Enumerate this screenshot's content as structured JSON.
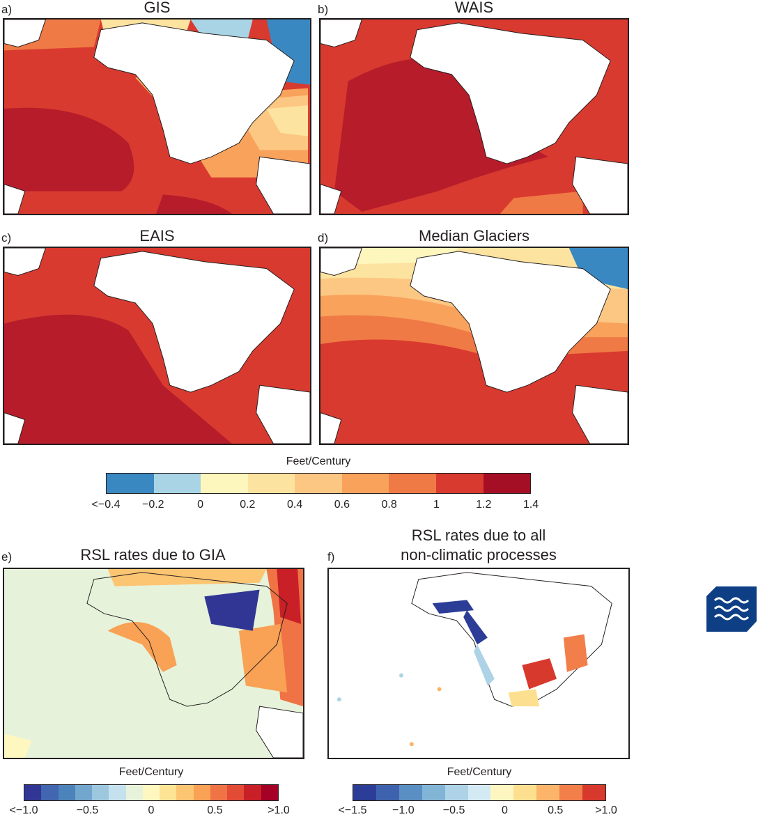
{
  "panels": [
    {
      "label": "a)",
      "title": "GIS"
    },
    {
      "label": "b)",
      "title": "WAIS"
    },
    {
      "label": "c)",
      "title": "EAIS"
    },
    {
      "label": "d)",
      "title": "Median Glaciers"
    },
    {
      "label": "e)",
      "title": "RSL rates due to GIA"
    },
    {
      "label": "f)",
      "title_line1": "RSL rates due to all",
      "title_line2": "non-climatic processes"
    }
  ],
  "colorbar_top": {
    "title": "Feet/Century",
    "ticks": [
      "<−0.4",
      "−0.2",
      "0",
      "0.2",
      "0.4",
      "0.6",
      "0.8",
      "1",
      "1.2",
      "1.4"
    ],
    "colors": [
      "#3a88c2",
      "#a9d4e6",
      "#fdf6bd",
      "#fde3a0",
      "#fcc783",
      "#f9a25c",
      "#ef7a45",
      "#d93a2f",
      "#a50f26"
    ]
  },
  "colorbar_e": {
    "title": "Feet/Century",
    "ticks": [
      "<−1.0",
      "−0.5",
      "0",
      "0.5",
      ">1.0"
    ],
    "colors": [
      "#313695",
      "#4266b0",
      "#4d83bb",
      "#72a6cd",
      "#9dc7de",
      "#c5e1ed",
      "#e6f2da",
      "#fef7c0",
      "#fde494",
      "#fcc572",
      "#f9a154",
      "#ef7344",
      "#e24b36",
      "#c91f27",
      "#a50026"
    ]
  },
  "colorbar_f": {
    "title": "Feet/Century",
    "ticks": [
      "<−1.5",
      "−1.0",
      "−0.5",
      "0",
      "0.5",
      ">1.0"
    ],
    "colors": [
      "#2c3d97",
      "#3f62ae",
      "#5a8fc3",
      "#82b4d6",
      "#aed3e6",
      "#d3eaf4",
      "#fef6c0",
      "#fde08f",
      "#fbb469",
      "#f27e4a",
      "#d7392c"
    ]
  },
  "logo_icon": "waves-icon"
}
